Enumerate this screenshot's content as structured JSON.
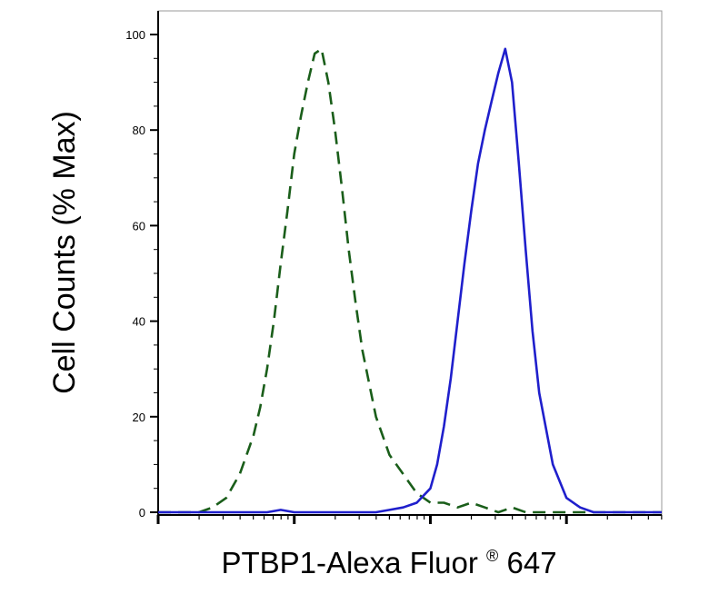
{
  "chart_data": {
    "type": "line",
    "title": "",
    "xlabel": "PTBP1-Alexa Fluor",
    "xlabel_sup": "®",
    "xlabel_suffix": " 647",
    "ylabel": "Cell Counts (% Max)",
    "x_scale": "log",
    "x_range_log10": [
      0,
      3.7
    ],
    "ylim": [
      0,
      100
    ],
    "yticks": [
      0,
      20,
      40,
      60,
      80,
      100
    ],
    "ytick_labels": [
      "0",
      "20",
      "40",
      "60",
      "80",
      "100"
    ],
    "grid": false,
    "legend": "none",
    "series": [
      {
        "style": "dashed",
        "color": "#1a5e1a",
        "x_log10": [
          0.0,
          0.2,
          0.3,
          0.4,
          0.5,
          0.6,
          0.7,
          0.75,
          0.8,
          0.85,
          0.9,
          0.95,
          1.0,
          1.05,
          1.1,
          1.15,
          1.2,
          1.25,
          1.3,
          1.35,
          1.4,
          1.45,
          1.5,
          1.6,
          1.7,
          1.8,
          1.9,
          2.0,
          2.1,
          2.2,
          2.3,
          2.4,
          2.5,
          2.6,
          2.7,
          2.8,
          3.0,
          3.2,
          3.4,
          3.7
        ],
        "y": [
          0,
          0,
          0,
          1,
          3,
          8,
          16,
          22,
          30,
          40,
          52,
          63,
          75,
          83,
          90,
          96,
          97,
          90,
          80,
          68,
          55,
          44,
          34,
          20,
          12,
          8,
          4,
          2,
          2,
          1,
          2,
          1,
          0,
          1,
          0,
          0,
          0,
          0,
          0,
          0
        ]
      },
      {
        "style": "solid",
        "color": "#1f1fcc",
        "x_log10": [
          0.0,
          0.5,
          0.8,
          0.9,
          1.0,
          1.2,
          1.4,
          1.6,
          1.7,
          1.8,
          1.9,
          2.0,
          2.05,
          2.1,
          2.15,
          2.2,
          2.25,
          2.3,
          2.35,
          2.4,
          2.45,
          2.5,
          2.55,
          2.6,
          2.65,
          2.7,
          2.75,
          2.8,
          2.9,
          3.0,
          3.1,
          3.2,
          3.4,
          3.7
        ],
        "y": [
          0,
          0,
          0,
          0.5,
          0,
          0,
          0,
          0,
          0.5,
          1,
          2,
          5,
          10,
          18,
          28,
          40,
          52,
          63,
          73,
          80,
          86,
          92,
          97,
          90,
          73,
          55,
          38,
          25,
          10,
          3,
          1,
          0,
          0,
          0
        ]
      }
    ]
  }
}
